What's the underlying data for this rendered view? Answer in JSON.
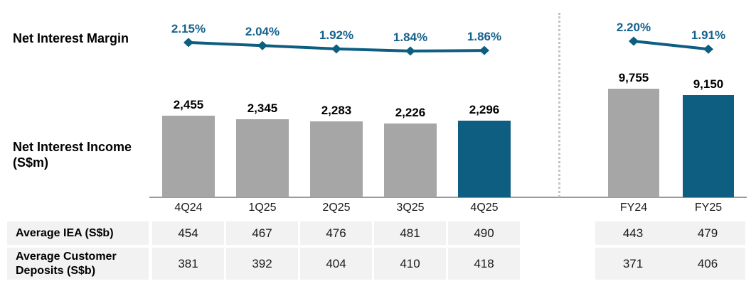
{
  "section_labels": {
    "nim": "Net Interest Margin",
    "nii": "Net Interest Income (S$m)"
  },
  "chart_data": {
    "type": "combo-bar-line",
    "bar_series_name": "Net Interest Income (S$m)",
    "line_series_name": "Net Interest Margin (%)",
    "legend_position": "none",
    "grid": false,
    "groups": [
      {
        "name": "quarterly",
        "categories": [
          "4Q24",
          "1Q25",
          "2Q25",
          "3Q25",
          "4Q25"
        ],
        "nim_percent": [
          2.15,
          2.04,
          1.92,
          1.84,
          1.86
        ],
        "nim_labels": [
          "2.15%",
          "2.04%",
          "1.92%",
          "1.84%",
          "1.86%"
        ],
        "nii_values": [
          2455,
          2345,
          2283,
          2226,
          2296
        ],
        "nii_labels": [
          "2,455",
          "2,345",
          "2,283",
          "2,226",
          "2,296"
        ],
        "highlight_index": 4
      },
      {
        "name": "full_year",
        "categories": [
          "FY24",
          "FY25"
        ],
        "nim_percent": [
          2.2,
          1.91
        ],
        "nim_labels": [
          "2.20%",
          "1.91%"
        ],
        "nii_values": [
          9755,
          9150
        ],
        "nii_labels": [
          "9,755",
          "9,150"
        ],
        "highlight_index": 1
      }
    ],
    "colors": {
      "bar_default": "#A6A6A6",
      "bar_highlight": "#0D5E80",
      "line": "#0D5E80",
      "value_text": "#000000",
      "pct_text": "#15618C",
      "table_cell_bg": "#F2F2F2",
      "axis": "#9A9A9A"
    }
  },
  "table": {
    "rows": [
      {
        "label": "Average IEA (S$b)",
        "quarterly": [
          "454",
          "467",
          "476",
          "481",
          "490"
        ],
        "full_year": [
          "443",
          "479"
        ]
      },
      {
        "label": "Average Customer Deposits (S$b)",
        "quarterly": [
          "381",
          "392",
          "404",
          "410",
          "418"
        ],
        "full_year": [
          "371",
          "406"
        ]
      }
    ]
  }
}
